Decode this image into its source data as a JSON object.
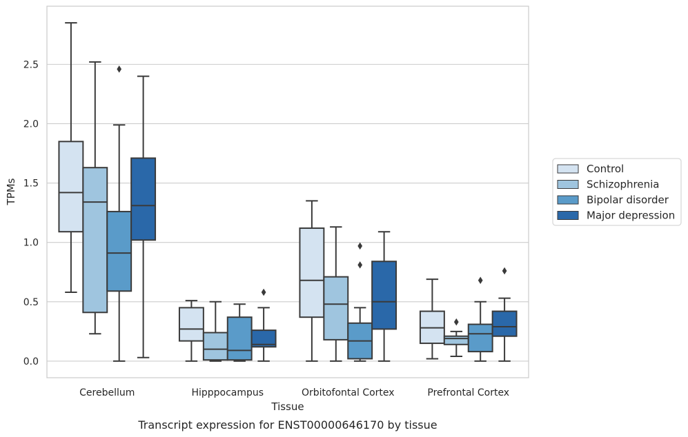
{
  "chart_data": {
    "type": "box",
    "title": "",
    "caption": "Transcript expression for ENST00000646170 by tissue",
    "xlabel": "Tissue",
    "ylabel": "TPMs",
    "ylim": [
      -0.14,
      2.99
    ],
    "yticks": [
      "0.0",
      "0.5",
      "1.0",
      "1.5",
      "2.0",
      "2.5"
    ],
    "ytick_values": [
      0.0,
      0.5,
      1.0,
      1.5,
      2.0,
      2.5
    ],
    "grid": "horizontal",
    "legend_position": "right",
    "categories": [
      "Cerebellum",
      "Hipppocampus",
      "Orbitofontal Cortex",
      "Prefrontal Cortex"
    ],
    "series": [
      {
        "name": "Control",
        "color": "#d4e3f1",
        "boxes": [
          {
            "min": 0.58,
            "q1": 1.09,
            "median": 1.42,
            "q3": 1.85,
            "max": 2.85,
            "outliers": []
          },
          {
            "min": 0.0,
            "q1": 0.17,
            "median": 0.27,
            "q3": 0.45,
            "max": 0.51,
            "outliers": []
          },
          {
            "min": 0.0,
            "q1": 0.37,
            "median": 0.68,
            "q3": 1.12,
            "max": 1.35,
            "outliers": []
          },
          {
            "min": 0.02,
            "q1": 0.15,
            "median": 0.28,
            "q3": 0.42,
            "max": 0.69,
            "outliers": []
          }
        ]
      },
      {
        "name": "Schizophrenia",
        "color": "#9fc5df",
        "boxes": [
          {
            "min": 0.23,
            "q1": 0.41,
            "median": 1.34,
            "q3": 1.63,
            "max": 2.52,
            "outliers": []
          },
          {
            "min": 0.0,
            "q1": 0.01,
            "median": 0.1,
            "q3": 0.24,
            "max": 0.5,
            "outliers": []
          },
          {
            "min": 0.0,
            "q1": 0.18,
            "median": 0.48,
            "q3": 0.71,
            "max": 1.13,
            "outliers": []
          },
          {
            "min": 0.04,
            "q1": 0.14,
            "median": 0.19,
            "q3": 0.21,
            "max": 0.25,
            "outliers": [
              0.33
            ]
          }
        ]
      },
      {
        "name": "Bipolar disorder",
        "color": "#5a9bc9",
        "boxes": [
          {
            "min": 0.0,
            "q1": 0.59,
            "median": 0.91,
            "q3": 1.26,
            "max": 1.99,
            "outliers": [
              2.46
            ]
          },
          {
            "min": 0.0,
            "q1": 0.01,
            "median": 0.09,
            "q3": 0.37,
            "max": 0.48,
            "outliers": []
          },
          {
            "min": 0.0,
            "q1": 0.02,
            "median": 0.17,
            "q3": 0.32,
            "max": 0.45,
            "outliers": [
              0.81,
              0.97
            ]
          },
          {
            "min": 0.0,
            "q1": 0.08,
            "median": 0.23,
            "q3": 0.31,
            "max": 0.5,
            "outliers": [
              0.68
            ]
          }
        ]
      },
      {
        "name": "Major depression",
        "color": "#2a68a9",
        "boxes": [
          {
            "min": 0.03,
            "q1": 1.02,
            "median": 1.31,
            "q3": 1.71,
            "max": 2.4,
            "outliers": []
          },
          {
            "min": 0.0,
            "q1": 0.12,
            "median": 0.14,
            "q3": 0.26,
            "max": 0.45,
            "outliers": [
              0.58
            ]
          },
          {
            "min": 0.0,
            "q1": 0.27,
            "median": 0.5,
            "q3": 0.84,
            "max": 1.09,
            "outliers": []
          },
          {
            "min": 0.0,
            "q1": 0.21,
            "median": 0.29,
            "q3": 0.42,
            "max": 0.53,
            "outliers": [
              0.76
            ]
          }
        ]
      }
    ]
  }
}
